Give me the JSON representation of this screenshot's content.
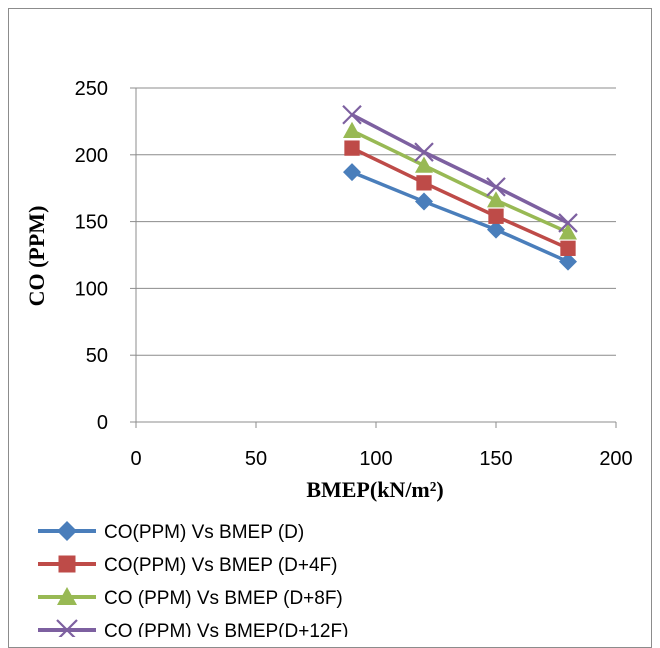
{
  "chart_data": {
    "type": "line",
    "title": "",
    "xlabel": "BMEP(kN/m²)",
    "ylabel": "CO (PPM)",
    "xlim": [
      0,
      200
    ],
    "ylim": [
      0,
      250
    ],
    "xticks": [
      0,
      50,
      100,
      150,
      200
    ],
    "yticks": [
      0,
      50,
      100,
      150,
      200,
      250
    ],
    "grid": "horizontal",
    "legend_position": "bottom",
    "x": [
      90,
      120,
      150,
      180
    ],
    "series": [
      {
        "name": "CO(PPM) Vs BMEP (D)",
        "values": [
          187,
          165,
          144,
          120
        ],
        "color": "#4a7ebb",
        "marker": "diamond"
      },
      {
        "name": "CO(PPM) Vs BMEP (D+4F)",
        "values": [
          205,
          179,
          154,
          130
        ],
        "color": "#be4b48",
        "marker": "square"
      },
      {
        "name": "CO (PPM) Vs BMEP (D+8F)",
        "values": [
          218,
          192,
          166,
          142
        ],
        "color": "#98b954",
        "marker": "triangle"
      },
      {
        "name": "CO (PPM) Vs BMEP(D+12F)",
        "values": [
          230,
          202,
          176,
          149
        ],
        "color": "#7d60a0",
        "marker": "x"
      }
    ]
  }
}
